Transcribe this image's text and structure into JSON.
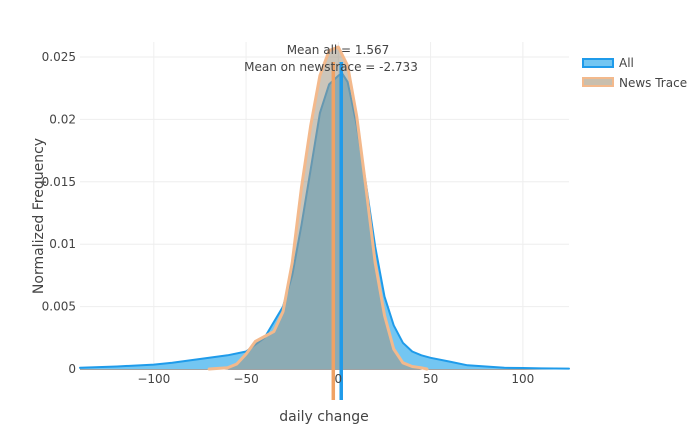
{
  "chart_data": {
    "type": "area",
    "title": "",
    "xlabel": "daily change",
    "ylabel": "Normalized Frequency",
    "xlim": [
      -140,
      125
    ],
    "ylim": [
      0,
      0.0262
    ],
    "x_ticks": [
      -100,
      -50,
      0,
      50,
      100
    ],
    "x_tick_labels": [
      "−100",
      "−50",
      "0",
      "50",
      "100"
    ],
    "y_ticks": [
      0,
      0.005,
      0.01,
      0.015,
      0.02,
      0.025
    ],
    "y_tick_labels": [
      "0",
      "0.005",
      "0.01",
      "0.015",
      "0.02",
      "0.025"
    ],
    "grid": true,
    "legend_position": "top-right",
    "series": [
      {
        "name": "All",
        "color": "#1f9bea",
        "fill": "#73c6f2",
        "x": [
          -140,
          -120,
          -100,
          -90,
          -80,
          -70,
          -60,
          -50,
          -40,
          -30,
          -25,
          -20,
          -15,
          -10,
          -5,
          0,
          2,
          5,
          10,
          15,
          20,
          25,
          30,
          35,
          40,
          45,
          50,
          60,
          70,
          80,
          90,
          100,
          110,
          125
        ],
        "y": [
          0.0001,
          0.0002,
          0.00035,
          0.0005,
          0.0007,
          0.0009,
          0.0011,
          0.0014,
          0.0025,
          0.005,
          0.0075,
          0.0115,
          0.016,
          0.0205,
          0.0228,
          0.0235,
          0.0237,
          0.023,
          0.0195,
          0.0148,
          0.0098,
          0.0058,
          0.0035,
          0.0021,
          0.0014,
          0.0011,
          0.0009,
          0.0006,
          0.0003,
          0.0002,
          0.0001,
          8e-05,
          5e-05,
          3e-05
        ]
      },
      {
        "name": "News Trace",
        "color": "#f3b98c",
        "fill": "rgba(160,150,130,0.55)",
        "x": [
          -70,
          -60,
          -55,
          -50,
          -45,
          -40,
          -35,
          -30,
          -25,
          -20,
          -15,
          -10,
          -5,
          0,
          5,
          10,
          15,
          20,
          25,
          30,
          35,
          40,
          45,
          48
        ],
        "y": [
          0,
          0.0001,
          0.0004,
          0.0012,
          0.0022,
          0.0026,
          0.003,
          0.0046,
          0.0085,
          0.0145,
          0.0195,
          0.0235,
          0.0255,
          0.0258,
          0.0243,
          0.0202,
          0.0145,
          0.0085,
          0.0043,
          0.0016,
          0.0005,
          0.0002,
          0.0001,
          0
        ]
      }
    ],
    "mean_lines": [
      {
        "name": "All",
        "x": 1.567,
        "color": "#1f9bea"
      },
      {
        "name": "News Trace",
        "x": -2.733,
        "color": "#f0a264"
      }
    ],
    "annotations": [
      "Mean all = 1.567",
      "Mean on newstrace = -2.733"
    ]
  }
}
